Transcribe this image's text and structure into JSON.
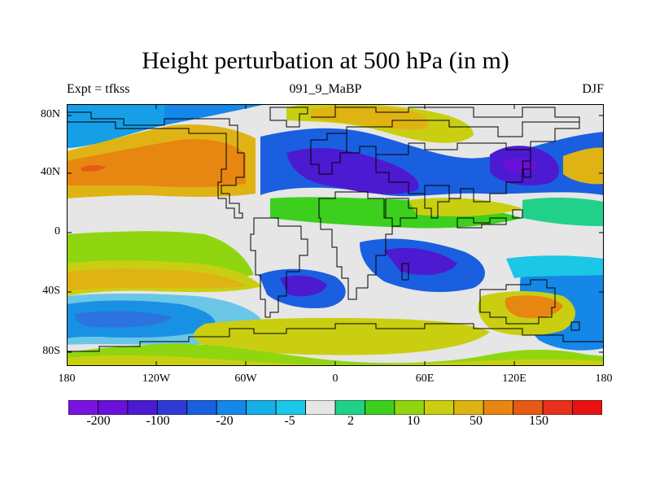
{
  "title": "Height perturbation at 500 hPa (in m)",
  "subtitle_left": "Expt = tfkss",
  "subtitle_center": "091_9_MaBP",
  "subtitle_right": "DJF",
  "lat_labels": [
    "80N",
    "40N",
    "0",
    "40S",
    "80S"
  ],
  "lon_labels": [
    "180",
    "120W",
    "60W",
    "0",
    "60E",
    "120E",
    "180"
  ],
  "colorbar": {
    "labels": [
      "-200",
      "-100",
      "-20",
      "-5",
      "2",
      "10",
      "50",
      "150"
    ],
    "colors": [
      "#7a12e0",
      "#6a10d8",
      "#4c1ad0",
      "#2e3ad6",
      "#1a5fe0",
      "#1487e8",
      "#17b0e6",
      "#1cc6e6",
      "#e6e6e6",
      "#21d18a",
      "#3ccf1e",
      "#8fd610",
      "#c9cf10",
      "#e0b314",
      "#e88612",
      "#e65a14",
      "#e8301a",
      "#e81010"
    ]
  }
}
